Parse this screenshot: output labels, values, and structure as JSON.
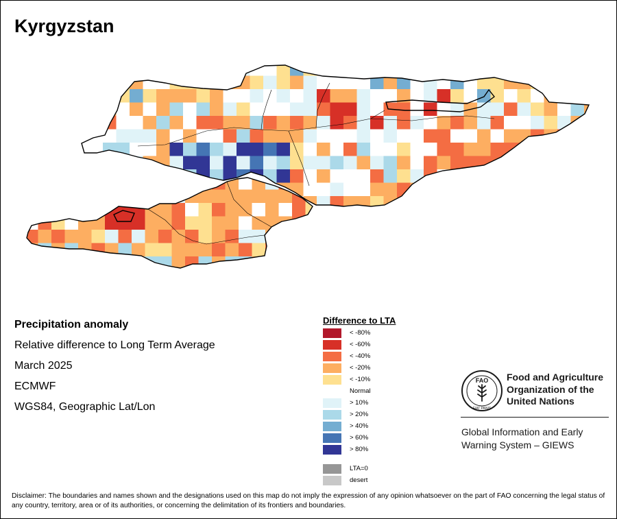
{
  "title": "Kyrgyzstan",
  "metadata": {
    "heading": "Precipitation anomaly",
    "description": "Relative difference to Long Term Average",
    "date": "March 2025",
    "source": "ECMWF",
    "projection": "WGS84, Geographic Lat/Lon"
  },
  "legend": {
    "title": "Difference to LTA",
    "items": [
      {
        "label": "< -80%",
        "color": "#b2182b"
      },
      {
        "label": "< -60%",
        "color": "#d73027"
      },
      {
        "label": "< -40%",
        "color": "#f46d43"
      },
      {
        "label": "< -20%",
        "color": "#fdae61"
      },
      {
        "label": "< -10%",
        "color": "#fee090"
      },
      {
        "label": "Normal",
        "color": "#ffffff"
      },
      {
        "label": "> 10%",
        "color": "#e0f3f8"
      },
      {
        "label": "> 20%",
        "color": "#abd9e9"
      },
      {
        "label": "> 40%",
        "color": "#74add1"
      },
      {
        "label": "> 60%",
        "color": "#4575b4"
      },
      {
        "label": "> 80%",
        "color": "#313695"
      },
      {
        "label": "LTA=0",
        "color": "#969696"
      },
      {
        "label": "desert",
        "color": "#c8c8c8"
      }
    ]
  },
  "organization": {
    "name_lines": [
      "Food and Agriculture",
      "Organization of the",
      "United Nations"
    ],
    "logo_text": "FAO",
    "logo_motto": "FIAT PANIS",
    "program_lines": [
      "Global Information and Early",
      "Warning System – GIEWS"
    ]
  },
  "disclaimer": "Disclaimer: The boundaries and names shown and the designations used on this map do not imply the expression of any opinion whatsoever on the part of FAO concerning the legal status of any country, territory, area or of its authorities, or concerning the delimitation of its frontiers and boundaries."
}
